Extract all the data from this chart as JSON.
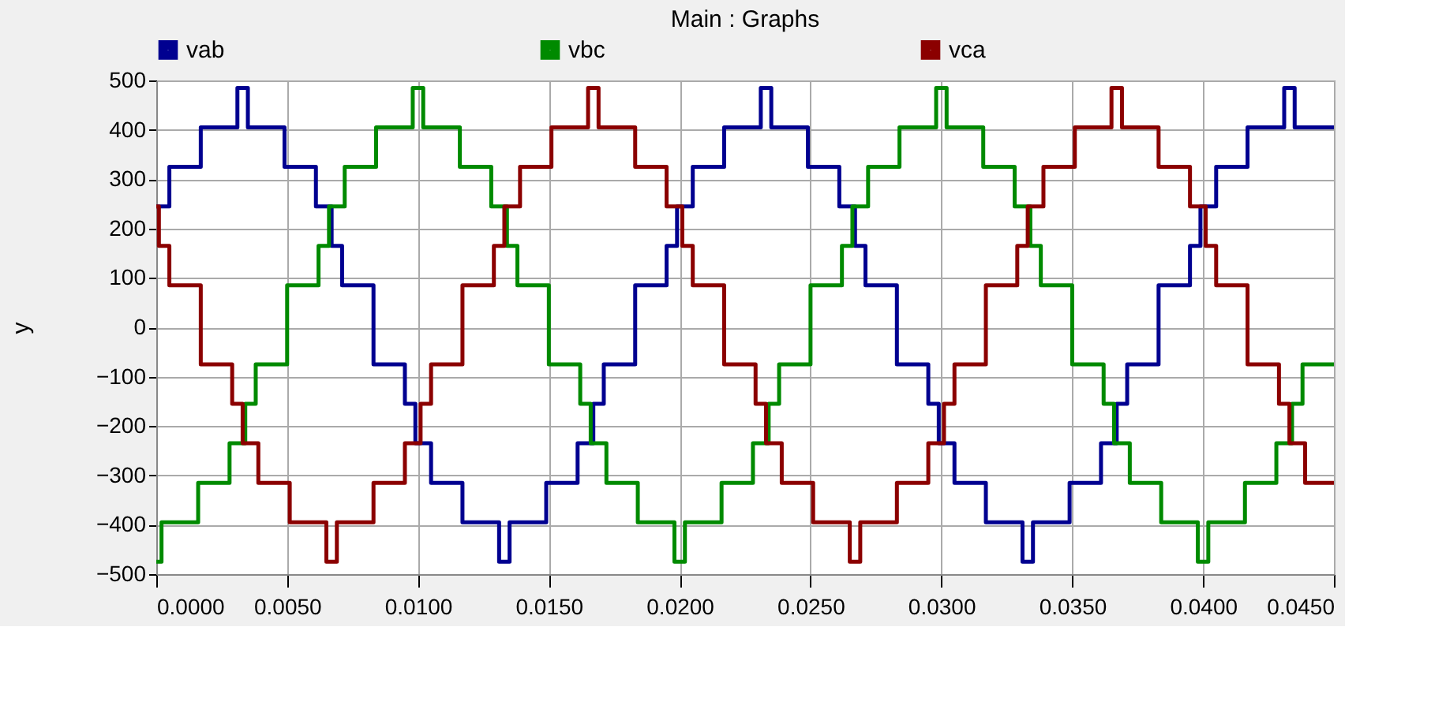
{
  "chart_data": {
    "type": "step",
    "title": "Main : Graphs",
    "ylabel": "y",
    "xlim": [
      0,
      0.045
    ],
    "ylim": [
      -500,
      500
    ],
    "xticks": [
      {
        "value": 0,
        "label": "0.0000"
      },
      {
        "value": 0.005,
        "label": "0.0050"
      },
      {
        "value": 0.01,
        "label": "0.0100"
      },
      {
        "value": 0.015,
        "label": "0.0150"
      },
      {
        "value": 0.02,
        "label": "0.0200"
      },
      {
        "value": 0.025,
        "label": "0.0250"
      },
      {
        "value": 0.03,
        "label": "0.0300"
      },
      {
        "value": 0.035,
        "label": "0.0350"
      },
      {
        "value": 0.04,
        "label": "0.0400"
      },
      {
        "value": 0.045,
        "label": "0.0450"
      }
    ],
    "yticks": [
      -500,
      -400,
      -300,
      -200,
      -100,
      0,
      100,
      200,
      300,
      400,
      500
    ],
    "grid": true,
    "legend": "top",
    "marker": "none",
    "line_style": "solid",
    "series": [
      {
        "name": "vab",
        "color": "#000090",
        "x": [
          0,
          0.0005,
          0.0017,
          0.0031,
          0.0035,
          0.0049,
          0.0061,
          0.0067,
          0.0071,
          0.0083,
          0.0095,
          0.0099,
          0.0105,
          0.0117,
          0.0131,
          0.0135,
          0.0149,
          0.0161,
          0.0167,
          0.0171,
          0.0183,
          0.0195,
          0.0199,
          0.0205,
          0.0217,
          0.0231,
          0.0235,
          0.0249,
          0.0261,
          0.0267,
          0.0271,
          0.0283,
          0.0295,
          0.0299,
          0.0305,
          0.0317,
          0.0331,
          0.0335,
          0.0349,
          0.0361,
          0.0367,
          0.0371,
          0.0383,
          0.0395,
          0.0399,
          0.0405,
          0.0417,
          0.0431,
          0.0435,
          0.045
        ],
        "values": [
          245,
          325,
          405,
          485,
          405,
          325,
          245,
          165,
          85,
          -75,
          -155,
          -235,
          -315,
          -395,
          -475,
          -395,
          -315,
          -235,
          -155,
          -75,
          85,
          165,
          245,
          325,
          405,
          485,
          405,
          325,
          245,
          165,
          85,
          -75,
          -155,
          -235,
          -315,
          -395,
          -475,
          -395,
          -315,
          -235,
          -155,
          -75,
          85,
          165,
          245,
          325,
          405,
          485,
          405,
          405
        ]
      },
      {
        "name": "vbc",
        "color": "#008a00",
        "x": [
          0,
          0.0002,
          0.0016,
          0.0028,
          0.0034,
          0.0038,
          0.005,
          0.0062,
          0.0066,
          0.0072,
          0.0084,
          0.0098,
          0.0102,
          0.0116,
          0.0128,
          0.0134,
          0.0138,
          0.015,
          0.0162,
          0.0166,
          0.0172,
          0.0184,
          0.0198,
          0.0202,
          0.0216,
          0.0228,
          0.0234,
          0.0238,
          0.025,
          0.0262,
          0.0266,
          0.0272,
          0.0284,
          0.0298,
          0.0302,
          0.0316,
          0.0328,
          0.0334,
          0.0338,
          0.035,
          0.0362,
          0.0366,
          0.0372,
          0.0384,
          0.0398,
          0.0402,
          0.0416,
          0.0428,
          0.0434,
          0.0438,
          0.045
        ],
        "values": [
          -475,
          -395,
          -315,
          -235,
          -155,
          -75,
          85,
          165,
          245,
          325,
          405,
          485,
          405,
          325,
          245,
          165,
          85,
          -75,
          -155,
          -235,
          -315,
          -395,
          -475,
          -395,
          -315,
          -235,
          -155,
          -75,
          85,
          165,
          245,
          325,
          405,
          485,
          405,
          325,
          245,
          165,
          85,
          -75,
          -155,
          -235,
          -315,
          -395,
          -475,
          -395,
          -315,
          -235,
          -155,
          -75,
          -75
        ]
      },
      {
        "name": "vca",
        "color": "#8b0000",
        "x": [
          0,
          0.0001,
          0.0005,
          0.0017,
          0.0029,
          0.0033,
          0.0039,
          0.0051,
          0.0065,
          0.0069,
          0.0083,
          0.0095,
          0.0101,
          0.0105,
          0.0117,
          0.0129,
          0.0133,
          0.0139,
          0.0151,
          0.0165,
          0.0169,
          0.0183,
          0.0195,
          0.0201,
          0.0205,
          0.0217,
          0.0229,
          0.0233,
          0.0239,
          0.0251,
          0.0265,
          0.0269,
          0.0283,
          0.0295,
          0.0301,
          0.0305,
          0.0317,
          0.0329,
          0.0333,
          0.0339,
          0.0351,
          0.0365,
          0.0369,
          0.0383,
          0.0395,
          0.0401,
          0.0405,
          0.0417,
          0.0429,
          0.0433,
          0.0439,
          0.045
        ],
        "values": [
          245,
          165,
          85,
          -75,
          -155,
          -235,
          -315,
          -395,
          -475,
          -395,
          -315,
          -235,
          -155,
          -75,
          85,
          165,
          245,
          325,
          405,
          485,
          405,
          325,
          245,
          165,
          85,
          -75,
          -155,
          -235,
          -315,
          -395,
          -475,
          -395,
          -315,
          -235,
          -155,
          -75,
          85,
          165,
          245,
          325,
          405,
          485,
          405,
          325,
          245,
          165,
          85,
          -75,
          -155,
          -235,
          -315,
          -315
        ]
      }
    ]
  }
}
